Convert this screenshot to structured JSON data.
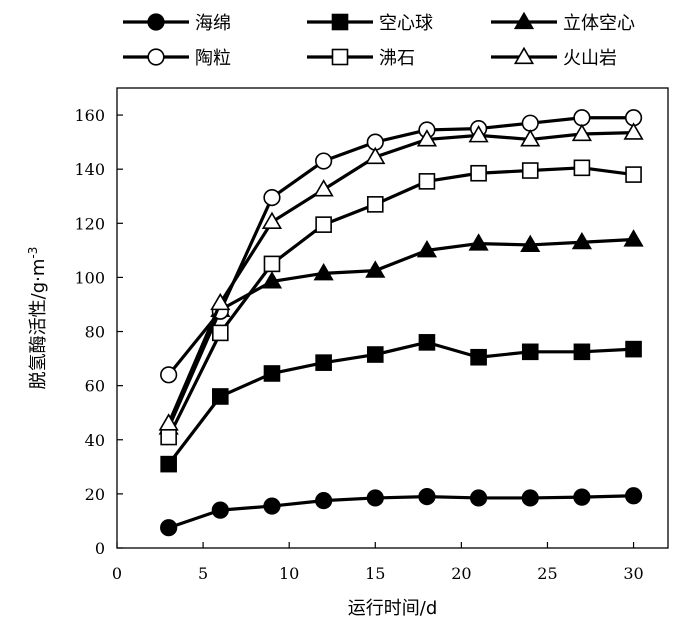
{
  "chart_data": {
    "type": "line",
    "title": "",
    "xlabel": "运行时间/d",
    "ylabel_main": "脱氢酶活性/g·m",
    "ylabel_sup": "-3",
    "xlim": [
      0,
      32
    ],
    "ylim": [
      0,
      170
    ],
    "xticks": [
      0,
      5,
      10,
      15,
      20,
      25,
      30
    ],
    "yticks": [
      0,
      20,
      40,
      60,
      80,
      100,
      120,
      140,
      160
    ],
    "legend_position": "top",
    "grid": false,
    "x": [
      3,
      6,
      9,
      12,
      15,
      18,
      21,
      24,
      27,
      30
    ],
    "series": [
      {
        "name": "海绵",
        "marker": "circle",
        "filled": true,
        "values": [
          7.5,
          14,
          15.5,
          17.5,
          18.5,
          19,
          18.5,
          18.5,
          18.8,
          19.3
        ]
      },
      {
        "name": "空心球",
        "marker": "square",
        "filled": true,
        "values": [
          31,
          56,
          64.5,
          68.5,
          71.5,
          76,
          70.5,
          72.5,
          72.5,
          73.5
        ]
      },
      {
        "name": "立体空心",
        "marker": "triangle",
        "filled": true,
        "values": [
          44.5,
          88,
          98.5,
          101.5,
          102.5,
          110,
          112.5,
          112,
          113,
          114
        ]
      },
      {
        "name": "陶粒",
        "marker": "circle",
        "filled": false,
        "values": [
          64,
          87.5,
          129.5,
          143,
          150,
          154.5,
          155,
          157,
          159,
          159
        ]
      },
      {
        "name": "沸石",
        "marker": "square",
        "filled": false,
        "values": [
          41,
          79.5,
          105,
          119.5,
          127,
          135.5,
          138.5,
          139.5,
          140.5,
          138
        ]
      },
      {
        "name": "火山岩",
        "marker": "triangle",
        "filled": false,
        "values": [
          46,
          90.5,
          120.5,
          132.5,
          144.5,
          151,
          152.5,
          151,
          153,
          153.5
        ]
      }
    ]
  }
}
